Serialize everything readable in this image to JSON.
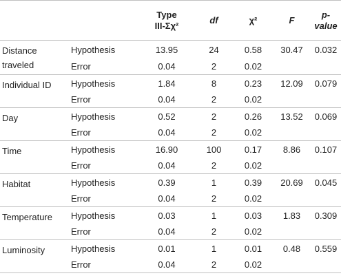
{
  "header": {
    "col1": "",
    "col2": "",
    "type_ss_line1": "Type",
    "type_ss_line2": "III-Σχ²",
    "df": "df",
    "chi2": "χ²",
    "f": "F",
    "p_line1": "p-",
    "p_line2": "value"
  },
  "rows": [
    {
      "factor": "Distance traveled",
      "hyp": {
        "label": "Hypothesis",
        "ss": "13.95",
        "df": "24",
        "chi2": "0.58",
        "f": "30.47",
        "p": "0.032"
      },
      "err": {
        "label": "Error",
        "ss": "0.04",
        "df": "2",
        "chi2": "0.02"
      }
    },
    {
      "factor": "Individual ID",
      "hyp": {
        "label": "Hypothesis",
        "ss": "1.84",
        "df": "8",
        "chi2": "0.23",
        "f": "12.09",
        "p": "0.079"
      },
      "err": {
        "label": "Error",
        "ss": "0.04",
        "df": "2",
        "chi2": "0.02"
      }
    },
    {
      "factor": "Day",
      "hyp": {
        "label": "Hypothesis",
        "ss": "0.52",
        "df": "2",
        "chi2": "0.26",
        "f": "13.52",
        "p": "0.069"
      },
      "err": {
        "label": "Error",
        "ss": "0.04",
        "df": "2",
        "chi2": "0.02"
      }
    },
    {
      "factor": "Time",
      "hyp": {
        "label": "Hypothesis",
        "ss": "16.90",
        "df": "100",
        "chi2": "0.17",
        "f": "8.86",
        "p": "0.107"
      },
      "err": {
        "label": "Error",
        "ss": "0.04",
        "df": "2",
        "chi2": "0.02"
      }
    },
    {
      "factor": "Habitat",
      "hyp": {
        "label": "Hypothesis",
        "ss": "0.39",
        "df": "1",
        "chi2": "0.39",
        "f": "20.69",
        "p": "0.045"
      },
      "err": {
        "label": "Error",
        "ss": "0.04",
        "df": "2",
        "chi2": "0.02"
      }
    },
    {
      "factor": "Temperature",
      "hyp": {
        "label": "Hypothesis",
        "ss": "0.03",
        "df": "1",
        "chi2": "0.03",
        "f": "1.83",
        "p": "0.309"
      },
      "err": {
        "label": "Error",
        "ss": "0.04",
        "df": "2",
        "chi2": "0.02"
      }
    },
    {
      "factor": "Luminosity",
      "hyp": {
        "label": "Hypothesis",
        "ss": "0.01",
        "df": "1",
        "chi2": "0.01",
        "f": "0.48",
        "p": "0.559"
      },
      "err": {
        "label": "Error",
        "ss": "0.04",
        "df": "2",
        "chi2": "0.02"
      }
    }
  ]
}
